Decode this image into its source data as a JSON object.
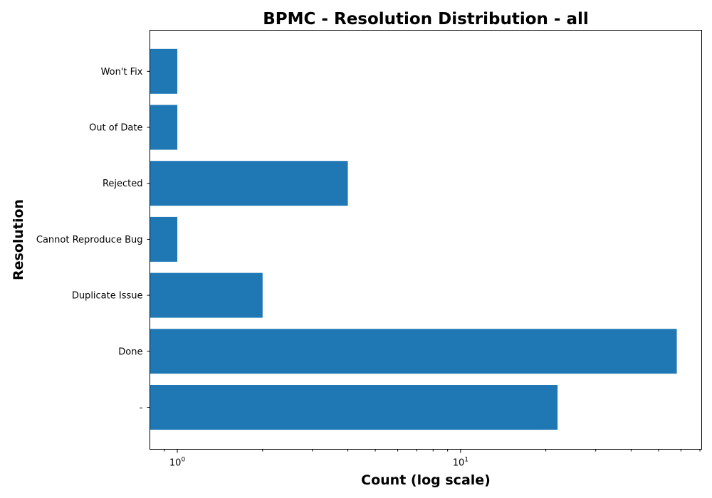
{
  "chart_data": {
    "type": "bar",
    "orientation": "horizontal",
    "title": "BPMC - Resolution Distribution - all",
    "xlabel": "Count (log scale)",
    "ylabel": "Resolution",
    "x_scale": "log",
    "xlim": [
      0.8,
      71
    ],
    "categories": [
      "-",
      "Done",
      "Duplicate Issue",
      "Cannot Reproduce Bug",
      "Rejected",
      "Out of Date",
      "Won't Fix"
    ],
    "values": [
      22,
      58,
      2,
      1,
      4,
      1,
      1
    ],
    "x_major_ticks": [
      {
        "base": "10",
        "exponent": "0",
        "value": 1
      },
      {
        "base": "10",
        "exponent": "1",
        "value": 10
      }
    ],
    "bar_color": "#1f77b4",
    "grid": false
  }
}
